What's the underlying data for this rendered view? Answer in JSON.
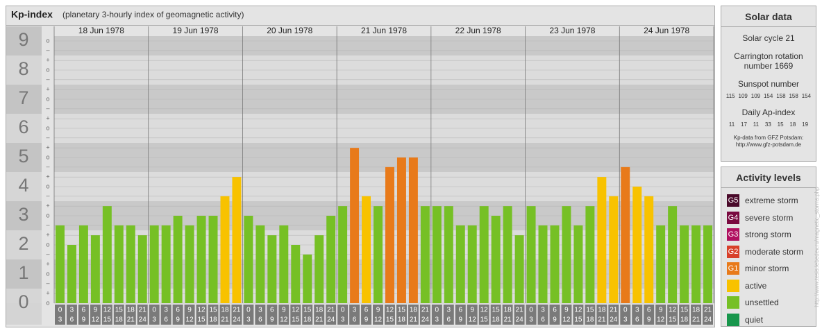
{
  "chart_data": {
    "type": "bar",
    "title": "Kp-index",
    "subtitle": "(planetary 3-hourly index of geomagnetic activity)",
    "days": [
      "18 Jun 1978",
      "19 Jun 1978",
      "20 Jun 1978",
      "21 Jun 1978",
      "22 Jun 1978",
      "23 Jun 1978",
      "24 Jun 1978"
    ],
    "hour_starts": [
      "0",
      "3",
      "6",
      "9",
      "12",
      "15",
      "18",
      "21"
    ],
    "hour_ends": [
      "3",
      "6",
      "9",
      "12",
      "15",
      "18",
      "21",
      "24"
    ],
    "values": [
      2.67,
      2,
      2.67,
      2.33,
      3.33,
      2.67,
      2.67,
      2.33,
      2.67,
      2.67,
      3,
      2.67,
      3,
      3,
      3.67,
      4.33,
      3,
      2.67,
      2.33,
      2.67,
      2,
      1.67,
      2.33,
      3,
      3.33,
      5.33,
      3.67,
      3.33,
      4.67,
      5,
      5,
      3.33,
      3.33,
      3.33,
      2.67,
      2.67,
      3.33,
      3,
      3.33,
      2.33,
      3.33,
      2.67,
      2.67,
      3.33,
      2.67,
      3.33,
      4.33,
      3.67,
      4.67,
      4,
      3.67,
      2.67,
      3.33,
      2.67,
      2.67,
      2.67
    ],
    "colors": [
      "#76c025",
      "#76c025",
      "#76c025",
      "#76c025",
      "#76c025",
      "#76c025",
      "#76c025",
      "#76c025",
      "#76c025",
      "#76c025",
      "#76c025",
      "#76c025",
      "#76c025",
      "#76c025",
      "#f8c200",
      "#f8c200",
      "#76c025",
      "#76c025",
      "#76c025",
      "#76c025",
      "#76c025",
      "#76c025",
      "#76c025",
      "#76c025",
      "#76c025",
      "#e87a1a",
      "#f8c200",
      "#76c025",
      "#e87a1a",
      "#e87a1a",
      "#e87a1a",
      "#76c025",
      "#76c025",
      "#76c025",
      "#76c025",
      "#76c025",
      "#76c025",
      "#76c025",
      "#76c025",
      "#76c025",
      "#76c025",
      "#76c025",
      "#76c025",
      "#76c025",
      "#76c025",
      "#76c025",
      "#f8c200",
      "#f8c200",
      "#e87a1a",
      "#f8c200",
      "#f8c200",
      "#76c025",
      "#76c025",
      "#76c025",
      "#76c025",
      "#76c025"
    ],
    "ylim": [
      0,
      9.5
    ],
    "yticks": [
      0,
      1,
      2,
      3,
      4,
      5,
      6,
      7,
      8,
      9
    ],
    "minor_ticks": [
      {
        "value": 0,
        "label": "o"
      },
      {
        "value": 0.33,
        "label": "+"
      },
      {
        "value": 0.67,
        "label": "–"
      },
      {
        "value": 1,
        "label": "o"
      },
      {
        "value": 1.33,
        "label": "+"
      },
      {
        "value": 1.67,
        "label": "–"
      },
      {
        "value": 2,
        "label": "o"
      },
      {
        "value": 2.33,
        "label": "+"
      },
      {
        "value": 2.67,
        "label": "–"
      },
      {
        "value": 3,
        "label": "o"
      },
      {
        "value": 3.33,
        "label": "+"
      },
      {
        "value": 3.67,
        "label": "–"
      },
      {
        "value": 4,
        "label": "o"
      },
      {
        "value": 4.33,
        "label": "+"
      },
      {
        "value": 4.67,
        "label": "–"
      },
      {
        "value": 5,
        "label": "o"
      },
      {
        "value": 5.33,
        "label": "+"
      },
      {
        "value": 5.67,
        "label": "–"
      },
      {
        "value": 6,
        "label": "o"
      },
      {
        "value": 6.33,
        "label": "+"
      },
      {
        "value": 6.67,
        "label": "–"
      },
      {
        "value": 7,
        "label": "o"
      },
      {
        "value": 7.33,
        "label": "+"
      },
      {
        "value": 7.67,
        "label": "–"
      },
      {
        "value": 8,
        "label": "o"
      },
      {
        "value": 8.33,
        "label": "+"
      },
      {
        "value": 8.67,
        "label": "–"
      },
      {
        "value": 9,
        "label": "o"
      }
    ],
    "grid": true
  },
  "solar_data": {
    "title": "Solar data",
    "cycle": "Solar cycle 21",
    "carrington": "Carrington rotation number 1669",
    "sunspot_title": "Sunspot number",
    "sunspot": [
      115,
      109,
      109,
      154,
      158,
      158,
      154
    ],
    "ap_title": "Daily Ap-index",
    "ap": [
      11,
      17,
      11,
      33,
      15,
      18,
      19
    ],
    "source": "Kp-data from GFZ Potsdam:",
    "source_url": "http://www.gfz-potsdam.de"
  },
  "activity_levels": {
    "title": "Activity levels",
    "items": [
      {
        "code": "G5",
        "label": "extreme storm",
        "color": "#4a0a2a"
      },
      {
        "code": "G4",
        "label": "severe storm",
        "color": "#7a0a40"
      },
      {
        "code": "G3",
        "label": "strong storm",
        "color": "#b01060"
      },
      {
        "code": "G2",
        "label": "moderate storm",
        "color": "#d8402a"
      },
      {
        "code": "G1",
        "label": "minor storm",
        "color": "#e87a1a"
      },
      {
        "label": "active",
        "color": "#f8c200"
      },
      {
        "label": "unsettled",
        "color": "#76c025"
      },
      {
        "label": "quiet",
        "color": "#18964c"
      }
    ]
  },
  "credit": "http://www.tesis.lebedev.ru/magnetic_storms.php"
}
